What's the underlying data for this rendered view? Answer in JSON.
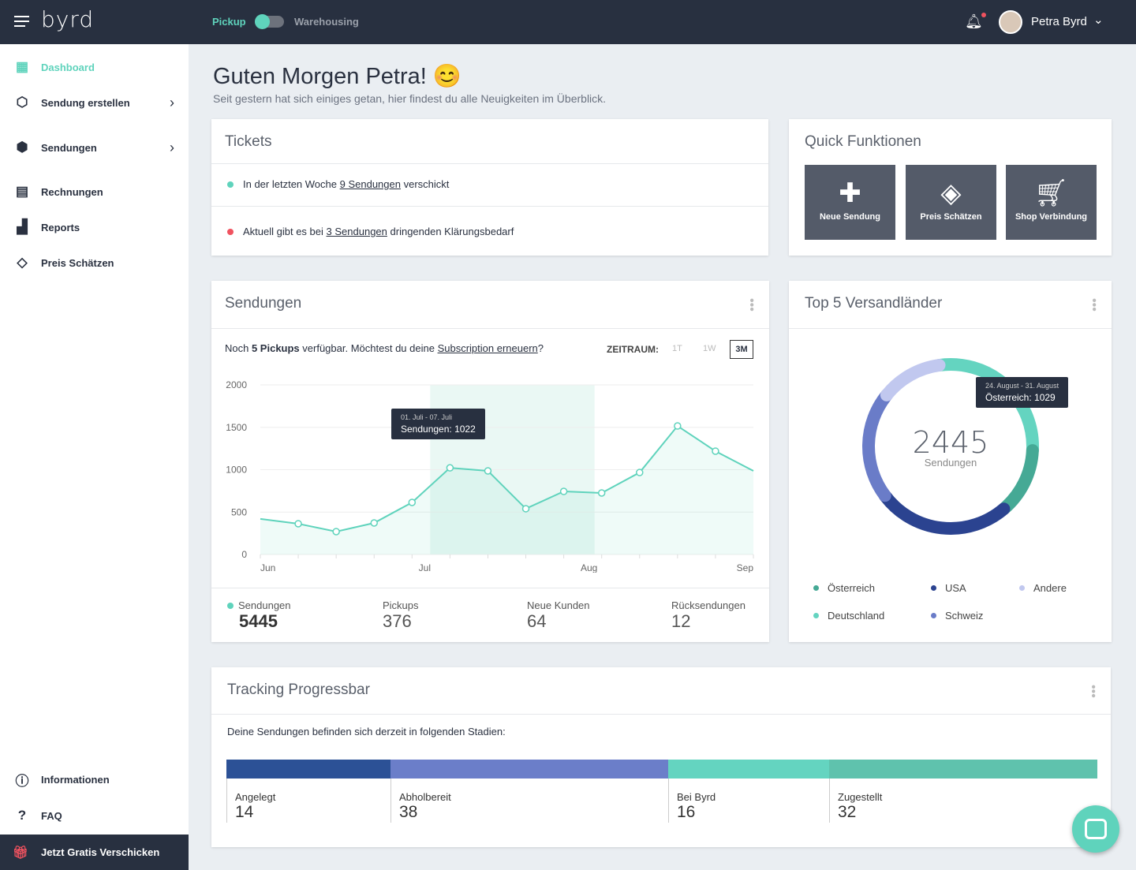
{
  "header": {
    "logo": "byrd",
    "toggle_left": "Pickup",
    "toggle_right": "Warehousing",
    "toggle_on": false,
    "user": "Petra Byrd"
  },
  "sidebar": {
    "items": [
      {
        "label": "Dashboard",
        "icon": "grid-icon"
      },
      {
        "label": "Sendung erstellen",
        "icon": "box-plus-icon"
      },
      {
        "label": "Sendungen",
        "icon": "boxes-icon"
      },
      {
        "label": "Rechnungen",
        "icon": "invoice-icon"
      },
      {
        "label": "Reports",
        "icon": "chart-icon"
      },
      {
        "label": "Preis Schätzen",
        "icon": "tag-icon"
      }
    ],
    "bottom": [
      {
        "label": "Informationen",
        "icon": "info-icon"
      },
      {
        "label": "FAQ",
        "icon": "question-icon"
      }
    ],
    "cta": "Jetzt Gratis Verschicken"
  },
  "greeting": {
    "title": "Guten Morgen Petra! 😊",
    "subtitle": "Seit gestern hat sich einiges getan, hier findest du alle Neuigkeiten im Überblick."
  },
  "tickets": {
    "title": "Tickets",
    "rows": [
      {
        "pre": "In der letzten Woche ",
        "link": "9 Sendungen",
        "post": " verschickt",
        "color": "#5fd3bc"
      },
      {
        "pre": "Aktuell gibt es bei ",
        "link": "3 Sendungen",
        "post": " dringenden Klärungsbedarf",
        "color": "#f0525f"
      }
    ]
  },
  "quick": {
    "title": "Quick Funktionen",
    "buttons": [
      "Neue Sendung",
      "Preis Schätzen",
      "Shop Verbindung"
    ]
  },
  "sendungen": {
    "title": "Sendungen",
    "notice_pre": "Noch ",
    "notice_bold": "5 Pickups",
    "notice_mid": " verfügbar. Möchtest du deine ",
    "notice_link": "Subscription erneuern",
    "notice_post": "?",
    "zeitraum": "ZEITRAUM:",
    "ranges": [
      "1T",
      "1W",
      "3M"
    ],
    "selected_range": "3M",
    "tooltip": {
      "range": "01. Juli - 07. Juli",
      "label": "Sendungen: 1022"
    },
    "stats": [
      {
        "label": "Sendungen",
        "value": "5445"
      },
      {
        "label": "Pickups",
        "value": "376"
      },
      {
        "label": "Neue Kunden",
        "value": "64"
      },
      {
        "label": "Rücksendungen",
        "value": "12"
      }
    ]
  },
  "chart_data": {
    "type": "area",
    "yticks": [
      "2000",
      "1500",
      "1000",
      "500",
      "0"
    ],
    "ylim": [
      0,
      2000
    ],
    "xticks": [
      "Jun",
      "Jul",
      "Aug",
      "Sep"
    ],
    "values": [
      420,
      363,
      270,
      372,
      614,
      1022,
      986,
      540,
      744,
      726,
      967,
      1516,
      1219,
      986
    ],
    "highlight": [
      "Jul",
      "Aug"
    ],
    "color": "#5fd3bc",
    "grid": true
  },
  "donut": {
    "title": "Top 5 Versandländer",
    "total": "2445",
    "total_label": "Sendungen",
    "tooltip": {
      "range": "24. August - 31. August",
      "label": "Österreich: 1029"
    },
    "segments": [
      {
        "name": "Österreich",
        "share": 28,
        "color": "#64d4c0"
      },
      {
        "name": "Deutschland",
        "share": 13,
        "color": "#45a995"
      },
      {
        "name": "USA",
        "share": 26,
        "color": "#2b4390"
      },
      {
        "name": "Schweiz",
        "share": 21,
        "color": "#6a7cc8"
      },
      {
        "name": "Andere",
        "share": 12,
        "color": "#c1c8ef"
      }
    ]
  },
  "tracking": {
    "title": "Tracking Progressbar",
    "subtitle": "Deine Sendungen befinden sich derzeit in folgenden Stadien:",
    "stages": [
      {
        "label": "Angelegt",
        "value": "14",
        "color": "#2c5196"
      },
      {
        "label": "Abholbereit",
        "value": "38",
        "color": "#6b7ec9"
      },
      {
        "label": "Bei Byrd",
        "value": "16",
        "color": "#64d4c0"
      },
      {
        "label": "Zugestellt",
        "value": "32",
        "color": "#5fc2ad"
      }
    ]
  }
}
